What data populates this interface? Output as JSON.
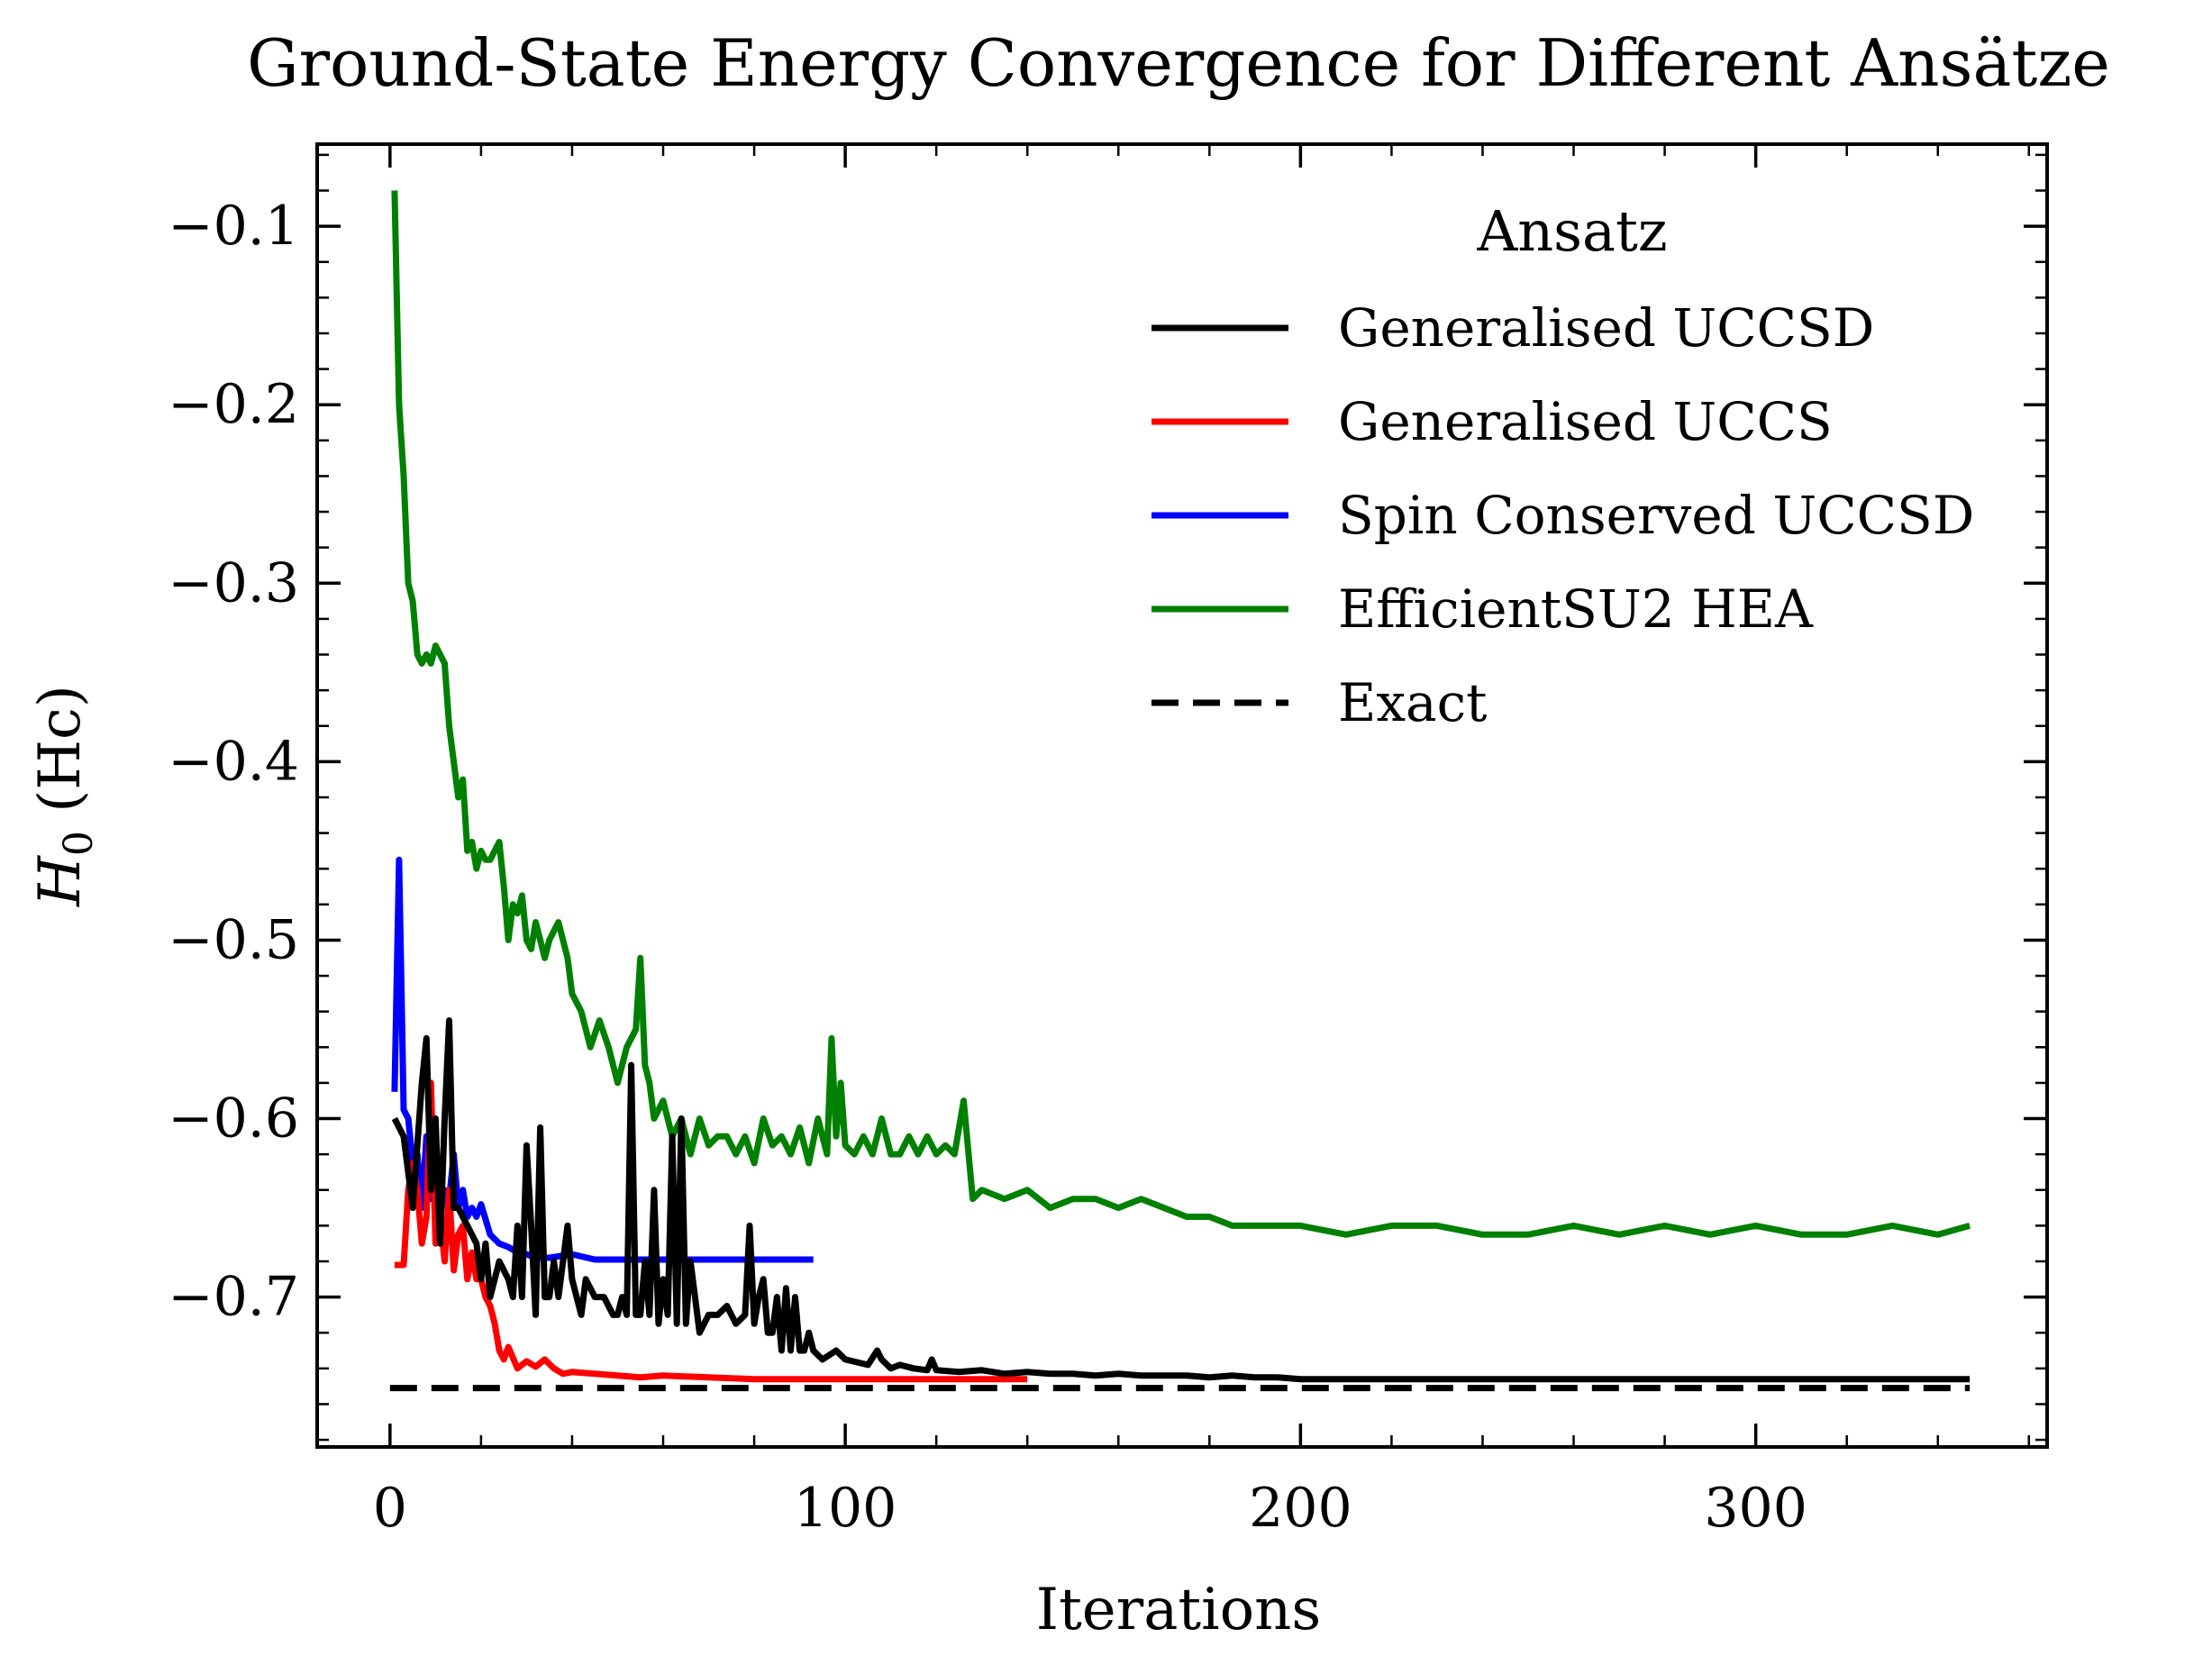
{
  "chart_data": {
    "type": "line",
    "title": "Ground-State Energy Convergence for Different Ansätze",
    "xlabel": "Iterations",
    "ylabel_main": "H",
    "ylabel_sub": "0",
    "ylabel_unit": " (Hc)",
    "xlim": [
      -16,
      364
    ],
    "ylim": [
      -0.784,
      -0.054
    ],
    "xticks": [
      0,
      100,
      200,
      300
    ],
    "xtick_labels": [
      "0",
      "100",
      "200",
      "300"
    ],
    "yticks": [
      -0.1,
      -0.2,
      -0.3,
      -0.4,
      -0.5,
      -0.6,
      -0.7
    ],
    "ytick_labels": [
      "−0.1",
      "−0.2",
      "−0.3",
      "−0.4",
      "−0.5",
      "−0.6",
      "−0.7"
    ],
    "grid": false,
    "legend": {
      "title": "Ansatz",
      "placement": "top-right"
    },
    "series": [
      {
        "name": "Generalised UCCSD",
        "color": "#000000",
        "dash": "solid",
        "x": [
          1,
          3,
          5,
          7,
          8,
          9,
          10,
          11,
          12,
          13,
          14,
          15,
          17,
          19,
          20,
          21,
          22,
          24,
          26,
          27,
          28,
          29,
          30,
          31,
          32,
          33,
          34,
          35,
          36,
          37,
          39,
          40,
          41,
          42,
          43,
          45,
          47,
          49,
          50,
          51,
          52,
          53,
          54,
          55,
          56,
          57,
          58,
          59,
          60,
          61,
          62,
          63,
          64,
          65,
          66,
          67,
          68,
          70,
          72,
          74,
          76,
          78,
          79,
          80,
          81,
          82,
          83,
          84,
          85,
          86,
          87,
          88,
          89,
          90,
          91,
          92,
          93,
          95,
          98,
          100,
          105,
          107,
          108,
          110,
          112,
          115,
          118,
          119,
          120,
          125,
          130,
          135,
          140,
          145,
          150,
          155,
          160,
          165,
          170,
          175,
          180,
          185,
          190,
          195,
          200,
          210,
          220,
          230,
          240,
          250,
          260,
          280,
          300,
          320,
          340,
          347
        ],
        "y": [
          -0.6,
          -0.61,
          -0.65,
          -0.58,
          -0.555,
          -0.64,
          -0.6,
          -0.67,
          -0.6,
          -0.545,
          -0.65,
          -0.65,
          -0.66,
          -0.67,
          -0.69,
          -0.67,
          -0.7,
          -0.68,
          -0.69,
          -0.7,
          -0.66,
          -0.7,
          -0.615,
          -0.66,
          -0.71,
          -0.605,
          -0.7,
          -0.7,
          -0.68,
          -0.7,
          -0.66,
          -0.69,
          -0.7,
          -0.71,
          -0.69,
          -0.7,
          -0.7,
          -0.71,
          -0.71,
          -0.7,
          -0.71,
          -0.57,
          -0.71,
          -0.71,
          -0.68,
          -0.71,
          -0.64,
          -0.715,
          -0.69,
          -0.71,
          -0.61,
          -0.715,
          -0.6,
          -0.715,
          -0.68,
          -0.7,
          -0.72,
          -0.71,
          -0.71,
          -0.705,
          -0.715,
          -0.71,
          -0.66,
          -0.715,
          -0.7,
          -0.69,
          -0.72,
          -0.72,
          -0.7,
          -0.73,
          -0.695,
          -0.73,
          -0.7,
          -0.73,
          -0.73,
          -0.72,
          -0.73,
          -0.735,
          -0.73,
          -0.735,
          -0.738,
          -0.73,
          -0.735,
          -0.74,
          -0.738,
          -0.74,
          -0.741,
          -0.735,
          -0.741,
          -0.742,
          -0.741,
          -0.743,
          -0.742,
          -0.743,
          -0.743,
          -0.744,
          -0.743,
          -0.744,
          -0.744,
          -0.744,
          -0.745,
          -0.744,
          -0.745,
          -0.745,
          -0.746,
          -0.746,
          -0.746,
          -0.746,
          -0.746,
          -0.746,
          -0.746,
          -0.746,
          -0.746,
          -0.746,
          -0.746,
          -0.746
        ]
      },
      {
        "name": "Generalised UCCS",
        "color": "#ff0000",
        "dash": "solid",
        "x": [
          1,
          2,
          3,
          4,
          5,
          6,
          7,
          8,
          9,
          10,
          11,
          12,
          13,
          14,
          15,
          16,
          17,
          18,
          19,
          20,
          21,
          22,
          23,
          24,
          25,
          26,
          28,
          30,
          32,
          34,
          36,
          38,
          40,
          45,
          50,
          55,
          60,
          70,
          80,
          90,
          100,
          110,
          120,
          130,
          140
        ],
        "y": [
          -0.682,
          -0.682,
          -0.682,
          -0.64,
          -0.625,
          -0.64,
          -0.67,
          -0.655,
          -0.58,
          -0.67,
          -0.655,
          -0.68,
          -0.64,
          -0.685,
          -0.665,
          -0.66,
          -0.69,
          -0.675,
          -0.69,
          -0.69,
          -0.7,
          -0.705,
          -0.715,
          -0.73,
          -0.735,
          -0.728,
          -0.74,
          -0.736,
          -0.739,
          -0.735,
          -0.74,
          -0.743,
          -0.742,
          -0.743,
          -0.744,
          -0.745,
          -0.744,
          -0.745,
          -0.746,
          -0.746,
          -0.746,
          -0.746,
          -0.746,
          -0.746,
          -0.746
        ]
      },
      {
        "name": "Spin Conserved UCCSD",
        "color": "#0000ff",
        "dash": "solid",
        "x": [
          1,
          2,
          3,
          4,
          5,
          6,
          7,
          8,
          9,
          10,
          11,
          12,
          13,
          14,
          15,
          16,
          17,
          18,
          19,
          20,
          22,
          24,
          26,
          28,
          30,
          32,
          35,
          40,
          45,
          50,
          60,
          70,
          80,
          90,
          93
        ],
        "y": [
          -0.585,
          -0.455,
          -0.595,
          -0.6,
          -0.625,
          -0.62,
          -0.65,
          -0.61,
          -0.645,
          -0.63,
          -0.655,
          -0.64,
          -0.645,
          -0.62,
          -0.65,
          -0.64,
          -0.655,
          -0.65,
          -0.655,
          -0.648,
          -0.665,
          -0.67,
          -0.672,
          -0.675,
          -0.676,
          -0.678,
          -0.678,
          -0.676,
          -0.679,
          -0.679,
          -0.679,
          -0.679,
          -0.679,
          -0.679,
          -0.679
        ]
      },
      {
        "name": "EfficientSU2 HEA",
        "color": "#008000",
        "dash": "solid",
        "x": [
          1,
          2,
          3,
          4,
          5,
          6,
          7,
          8,
          9,
          10,
          11,
          12,
          13,
          14,
          15,
          16,
          17,
          18,
          19,
          20,
          21,
          22,
          23,
          24,
          25,
          26,
          27,
          28,
          29,
          30,
          31,
          32,
          33,
          34,
          35,
          36,
          37,
          38,
          39,
          40,
          42,
          44,
          46,
          48,
          50,
          52,
          54,
          55,
          56,
          57,
          58,
          60,
          62,
          64,
          66,
          68,
          70,
          72,
          74,
          76,
          78,
          80,
          82,
          84,
          86,
          88,
          90,
          92,
          94,
          96,
          97,
          98,
          99,
          100,
          102,
          104,
          106,
          108,
          110,
          112,
          114,
          116,
          118,
          120,
          122,
          124,
          126,
          128,
          130,
          135,
          140,
          145,
          150,
          155,
          160,
          165,
          170,
          175,
          180,
          185,
          190,
          195,
          200,
          210,
          220,
          230,
          240,
          250,
          260,
          270,
          280,
          290,
          300,
          310,
          320,
          330,
          340,
          347
        ],
        "y": [
          -0.08,
          -0.2,
          -0.24,
          -0.3,
          -0.31,
          -0.34,
          -0.345,
          -0.34,
          -0.345,
          -0.335,
          -0.34,
          -0.345,
          -0.38,
          -0.4,
          -0.42,
          -0.41,
          -0.45,
          -0.445,
          -0.46,
          -0.45,
          -0.455,
          -0.455,
          -0.45,
          -0.445,
          -0.47,
          -0.5,
          -0.48,
          -0.485,
          -0.475,
          -0.5,
          -0.505,
          -0.49,
          -0.5,
          -0.51,
          -0.5,
          -0.495,
          -0.49,
          -0.5,
          -0.51,
          -0.53,
          -0.54,
          -0.56,
          -0.545,
          -0.56,
          -0.58,
          -0.56,
          -0.55,
          -0.51,
          -0.57,
          -0.58,
          -0.6,
          -0.59,
          -0.61,
          -0.6,
          -0.62,
          -0.6,
          -0.615,
          -0.61,
          -0.61,
          -0.62,
          -0.61,
          -0.625,
          -0.6,
          -0.615,
          -0.61,
          -0.62,
          -0.605,
          -0.625,
          -0.6,
          -0.62,
          -0.555,
          -0.61,
          -0.58,
          -0.615,
          -0.62,
          -0.61,
          -0.62,
          -0.6,
          -0.62,
          -0.62,
          -0.61,
          -0.62,
          -0.61,
          -0.62,
          -0.615,
          -0.62,
          -0.59,
          -0.645,
          -0.64,
          -0.645,
          -0.64,
          -0.65,
          -0.645,
          -0.645,
          -0.65,
          -0.645,
          -0.65,
          -0.655,
          -0.655,
          -0.66,
          -0.66,
          -0.66,
          -0.66,
          -0.665,
          -0.66,
          -0.66,
          -0.665,
          -0.665,
          -0.66,
          -0.665,
          -0.66,
          -0.665,
          -0.66,
          -0.665,
          -0.665,
          -0.66,
          -0.665,
          -0.66
        ]
      },
      {
        "name": "Exact",
        "color": "#000000",
        "dash": "dashed",
        "x": [
          0,
          347
        ],
        "y": [
          -0.751,
          -0.751
        ]
      }
    ]
  }
}
